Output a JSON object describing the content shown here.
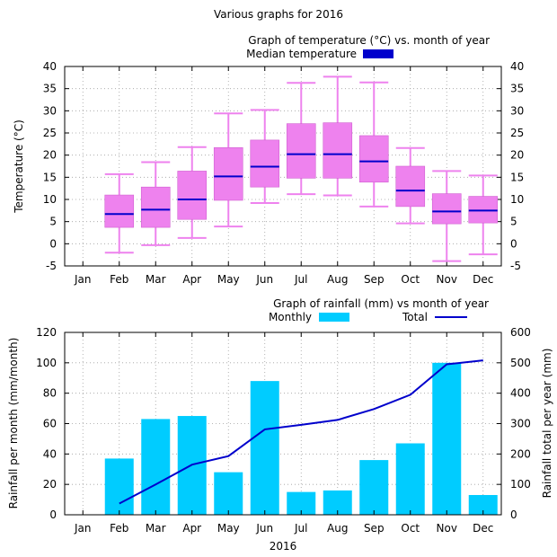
{
  "page_title": "Various graphs for 2016",
  "chart_data": [
    {
      "type": "box",
      "title": "Graph of temperature (°C) vs. month of year",
      "ylabel": "Temperature (°C)",
      "ylim": [
        -5,
        40
      ],
      "yticks": [
        -5,
        0,
        5,
        10,
        15,
        20,
        25,
        30,
        35,
        40
      ],
      "grid": true,
      "legend_position": "top-right",
      "categories": [
        "Jan",
        "Feb",
        "Mar",
        "Apr",
        "May",
        "Jun",
        "Jul",
        "Aug",
        "Sep",
        "Oct",
        "Nov",
        "Dec"
      ],
      "box_color": "#ee82ee",
      "median_color": "#0000cc",
      "series": [
        {
          "name": "Median temperature",
          "boxes": [
            null,
            {
              "min": -2,
              "q1": 3.7,
              "median": 6.7,
              "q3": 11,
              "max": 15.7
            },
            {
              "min": -0.3,
              "q1": 3.7,
              "median": 7.7,
              "q3": 12.8,
              "max": 18.4
            },
            {
              "min": 1.3,
              "q1": 5.5,
              "median": 10,
              "q3": 16.4,
              "max": 21.8
            },
            {
              "min": 3.9,
              "q1": 9.8,
              "median": 15.2,
              "q3": 21.7,
              "max": 29.4
            },
            {
              "min": 9.2,
              "q1": 12.8,
              "median": 17.4,
              "q3": 23.4,
              "max": 30.2
            },
            {
              "min": 11.2,
              "q1": 14.8,
              "median": 20.2,
              "q3": 27.1,
              "max": 36.3
            },
            {
              "min": 10.9,
              "q1": 14.8,
              "median": 20.2,
              "q3": 27.3,
              "max": 37.7
            },
            {
              "min": 8.4,
              "q1": 13.9,
              "median": 18.6,
              "q3": 24.4,
              "max": 36.4
            },
            {
              "min": 4.6,
              "q1": 8.4,
              "median": 12,
              "q3": 17.5,
              "max": 21.6
            },
            {
              "min": -3.9,
              "q1": 4.5,
              "median": 7.3,
              "q3": 11.3,
              "max": 16.4
            },
            {
              "min": -2.4,
              "q1": 4.7,
              "median": 7.5,
              "q3": 10.7,
              "max": 15.4
            }
          ]
        }
      ]
    },
    {
      "type": "bar+line",
      "title": "Graph of rainfall (mm) vs month of year",
      "xlabel": "2016",
      "ylabel": "Rainfall per month (mm/month)",
      "y2label": "Rainfall total per year (mm)",
      "ylim": [
        0,
        120
      ],
      "y2lim": [
        0,
        600
      ],
      "yticks": [
        0,
        20,
        40,
        60,
        80,
        100,
        120
      ],
      "y2ticks": [
        0,
        100,
        200,
        300,
        400,
        500,
        600
      ],
      "grid": true,
      "legend_position": "top",
      "categories": [
        "Jan",
        "Feb",
        "Mar",
        "Apr",
        "May",
        "Jun",
        "Jul",
        "Aug",
        "Sep",
        "Oct",
        "Nov",
        "Dec"
      ],
      "bar_color": "#00ccff",
      "line_color": "#0000cc",
      "series": [
        {
          "name": "Monthly",
          "type": "bar",
          "axis": "left",
          "values": [
            0,
            37,
            63,
            65,
            28,
            88,
            15,
            16,
            36,
            47,
            100,
            13
          ]
        },
        {
          "name": "Total",
          "type": "line",
          "axis": "right",
          "points": [
            [
              "Feb",
              37
            ],
            [
              "Mar",
              100
            ],
            [
              "Apr",
              165
            ],
            [
              "May",
              193
            ],
            [
              "Jun",
              281
            ],
            [
              "Jul",
              296
            ],
            [
              "Aug",
              312
            ],
            [
              "Sep",
              348
            ],
            [
              "Oct",
              395
            ],
            [
              "Nov",
              495
            ],
            [
              "Dec",
              508
            ]
          ]
        }
      ]
    }
  ]
}
